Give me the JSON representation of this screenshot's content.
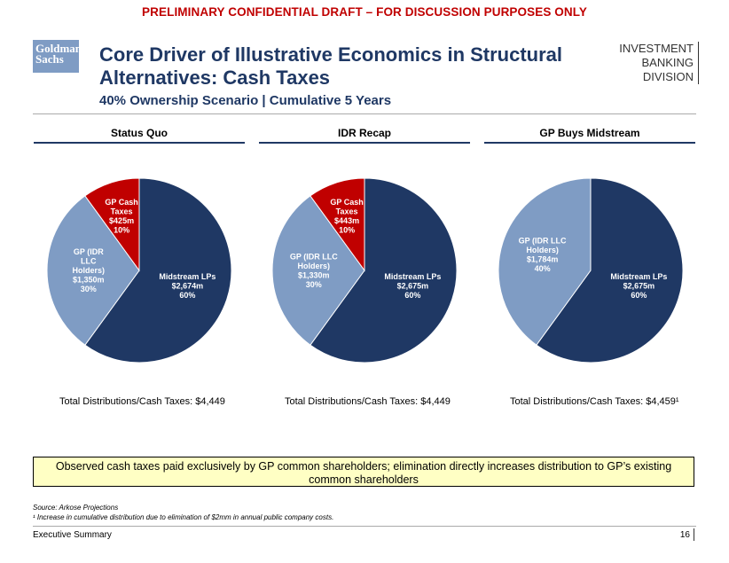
{
  "banner": "PRELIMINARY CONFIDENTIAL DRAFT – FOR DISCUSSION PURPOSES ONLY",
  "logo": {
    "line1": "Goldman",
    "line2": "Sachs"
  },
  "title": "Core Driver of Illustrative Economics in Structural Alternatives: Cash Taxes",
  "subtitle": "40% Ownership Scenario | Cumulative 5 Years",
  "division": {
    "line1": "INVESTMENT BANKING",
    "line2": "DIVISION"
  },
  "colors": {
    "navy": "#1f3864",
    "light_blue": "#7f9cc4",
    "red": "#c00000",
    "callout_bg": "#ffffc4"
  },
  "chart_data": [
    {
      "type": "pie",
      "title": "Status Quo",
      "slices": [
        {
          "name": "Midstream LPs",
          "value": 60,
          "amount": "$2,674m",
          "pct_label": "60%",
          "label_lines": [
            "Midstream LPs"
          ],
          "color": "#1f3864"
        },
        {
          "name": "GP (IDR LLC Holders)",
          "value": 30,
          "amount": "$1,350m",
          "pct_label": "30%",
          "label_lines": [
            "GP (IDR",
            "LLC",
            "Holders)"
          ],
          "color": "#7f9cc4"
        },
        {
          "name": "GP Cash Taxes",
          "value": 10,
          "amount": "$425m",
          "pct_label": "10%",
          "label_lines": [
            "GP Cash",
            "Taxes"
          ],
          "color": "#c00000"
        }
      ],
      "total_label": "Total Distributions/Cash Taxes: $4,449"
    },
    {
      "type": "pie",
      "title": "IDR Recap",
      "slices": [
        {
          "name": "Midstream LPs",
          "value": 60,
          "amount": "$2,675m",
          "pct_label": "60%",
          "label_lines": [
            "Midstream LPs"
          ],
          "color": "#1f3864"
        },
        {
          "name": "GP (IDR LLC Holders)",
          "value": 30,
          "amount": "$1,330m",
          "pct_label": "30%",
          "label_lines": [
            "GP (IDR LLC",
            "Holders)"
          ],
          "color": "#7f9cc4"
        },
        {
          "name": "GP Cash Taxes",
          "value": 10,
          "amount": "$443m",
          "pct_label": "10%",
          "label_lines": [
            "GP Cash",
            "Taxes"
          ],
          "color": "#c00000"
        }
      ],
      "total_label": "Total Distributions/Cash Taxes: $4,449"
    },
    {
      "type": "pie",
      "title": "GP Buys Midstream",
      "slices": [
        {
          "name": "Midstream LPs",
          "value": 60,
          "amount": "$2,675m",
          "pct_label": "60%",
          "label_lines": [
            "Midstream LPs"
          ],
          "color": "#1f3864"
        },
        {
          "name": "GP (IDR LLC Holders)",
          "value": 40,
          "amount": "$1,784m",
          "pct_label": "40%",
          "label_lines": [
            "GP (IDR LLC",
            "Holders)"
          ],
          "color": "#7f9cc4"
        }
      ],
      "total_label": "Total Distributions/Cash Taxes: $4,459¹"
    }
  ],
  "callout": "Observed cash taxes paid exclusively by GP common shareholders; elimination directly increases distribution to GP’s existing common shareholders",
  "source": "Source: Arkose Projections",
  "footnote": "¹ Increase in cumulative distribution due to elimination of $2mm in annual public company costs.",
  "footer": {
    "section": "Executive Summary",
    "page": "16"
  }
}
